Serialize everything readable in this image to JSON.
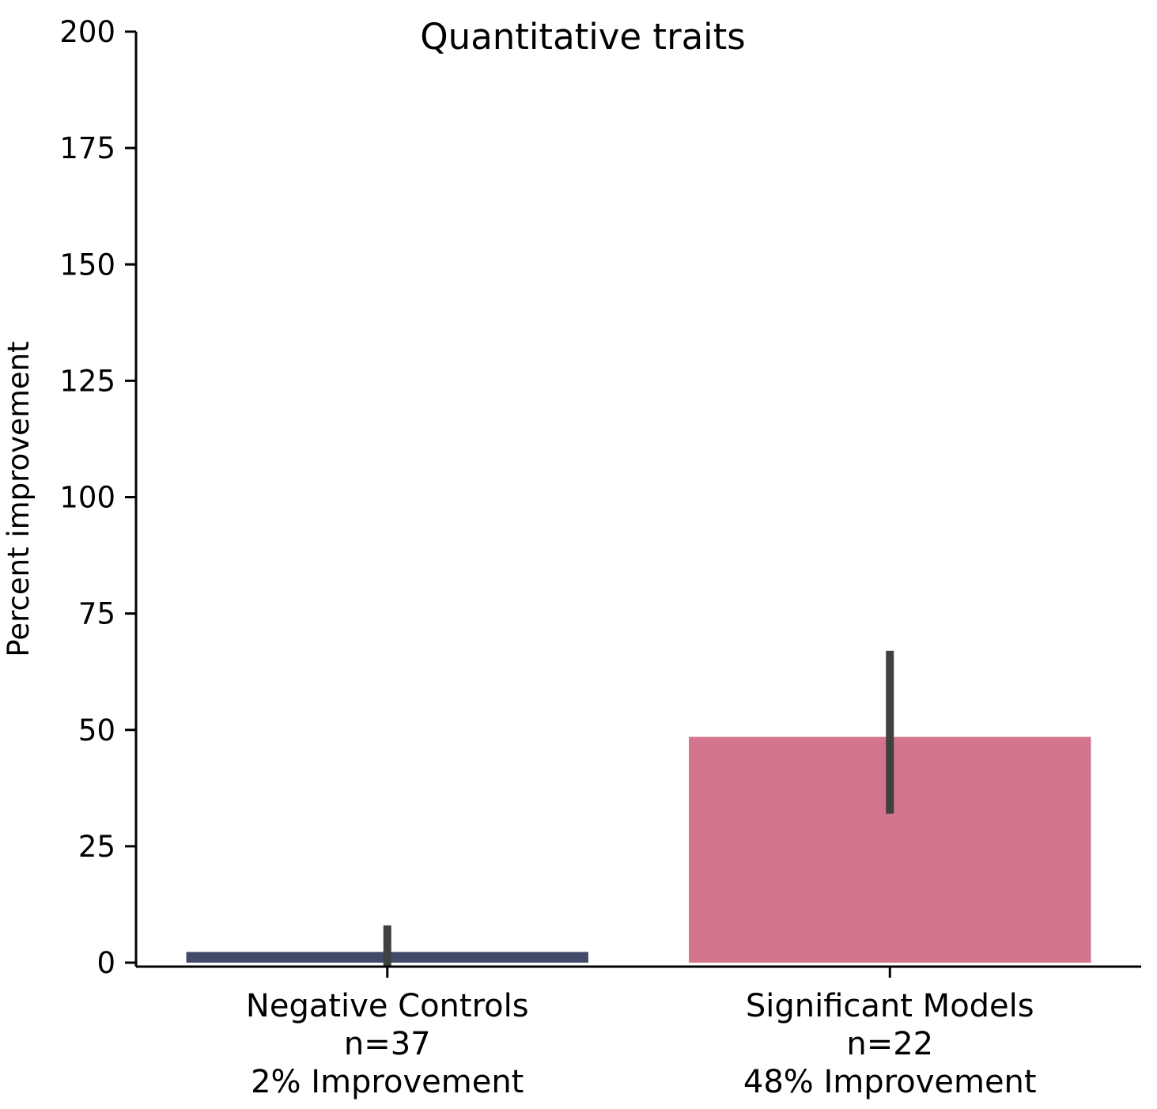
{
  "chart_data": {
    "type": "bar",
    "title": "Quantitative traits",
    "xlabel": "",
    "ylabel": "Percent improvement",
    "ylim": [
      0,
      200
    ],
    "yticks": [
      0,
      25,
      50,
      75,
      100,
      125,
      150,
      175,
      200
    ],
    "categories": [
      "Negative Controls",
      "Significant Models"
    ],
    "category_labels": [
      [
        "Negative Controls",
        "n=37",
        "2% Improvement"
      ],
      [
        "Significant Models",
        "n=22",
        "48% Improvement"
      ]
    ],
    "values": [
      2.3,
      48.5
    ],
    "error_bars": [
      {
        "low": -1,
        "high": 8
      },
      {
        "low": 32,
        "high": 67
      }
    ],
    "colors": [
      "#414a68",
      "#d3758c"
    ],
    "error_bar_color": "#404040",
    "grid": false,
    "legend": "none"
  }
}
